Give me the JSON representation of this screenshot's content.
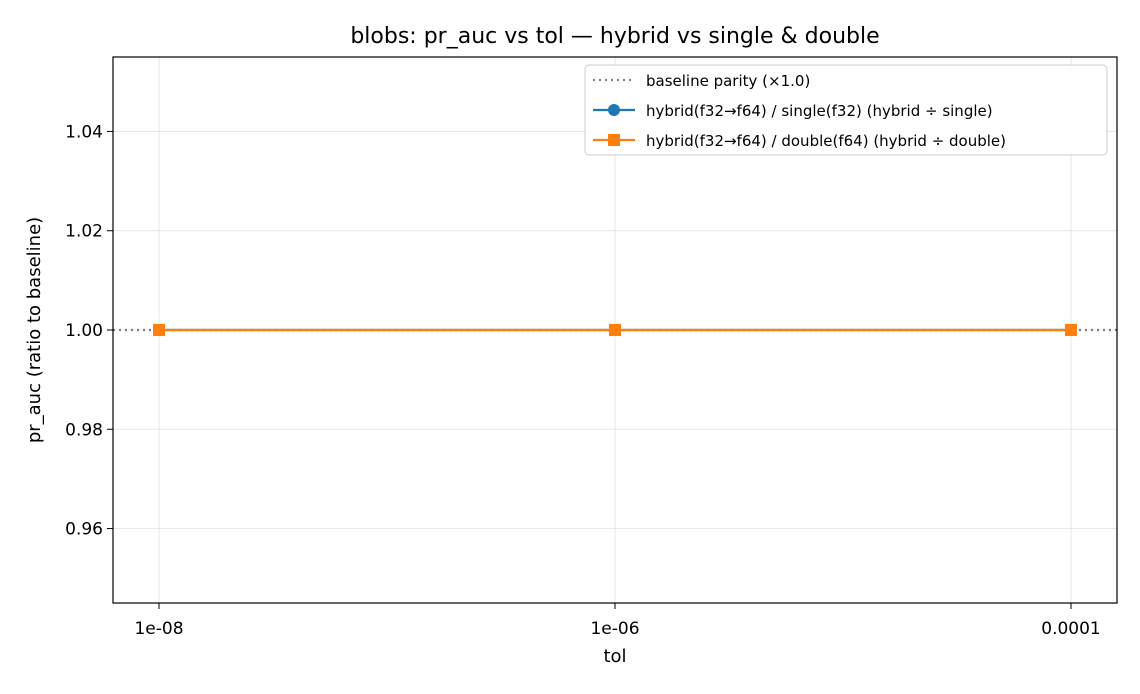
{
  "chart_data": {
    "type": "line",
    "title": "blobs: pr_auc vs tol — hybrid vs single & double",
    "xlabel": "tol",
    "ylabel": "pr_auc (ratio to baseline)",
    "x": [
      "1e-08",
      "1e-06",
      "0.0001"
    ],
    "y_ticks": [
      "0.96",
      "0.98",
      "1.00",
      "1.02",
      "1.04"
    ],
    "ylim": [
      0.945,
      1.055
    ],
    "grid": true,
    "legend_position": "top-right",
    "reference_line": {
      "name": "baseline parity (×1.0)",
      "value": 1.0,
      "style": "dotted",
      "color": "#7f7f7f"
    },
    "series": [
      {
        "name": "hybrid(f32→f64) / single(f32)  (hybrid ÷ single)",
        "values": [
          1.0,
          1.0,
          1.0
        ],
        "color": "#1f77b4",
        "marker": "circle"
      },
      {
        "name": "hybrid(f32→f64) / double(f64)  (hybrid ÷ double)",
        "values": [
          1.0,
          1.0,
          1.0
        ],
        "color": "#ff7f0e",
        "marker": "square"
      }
    ]
  }
}
